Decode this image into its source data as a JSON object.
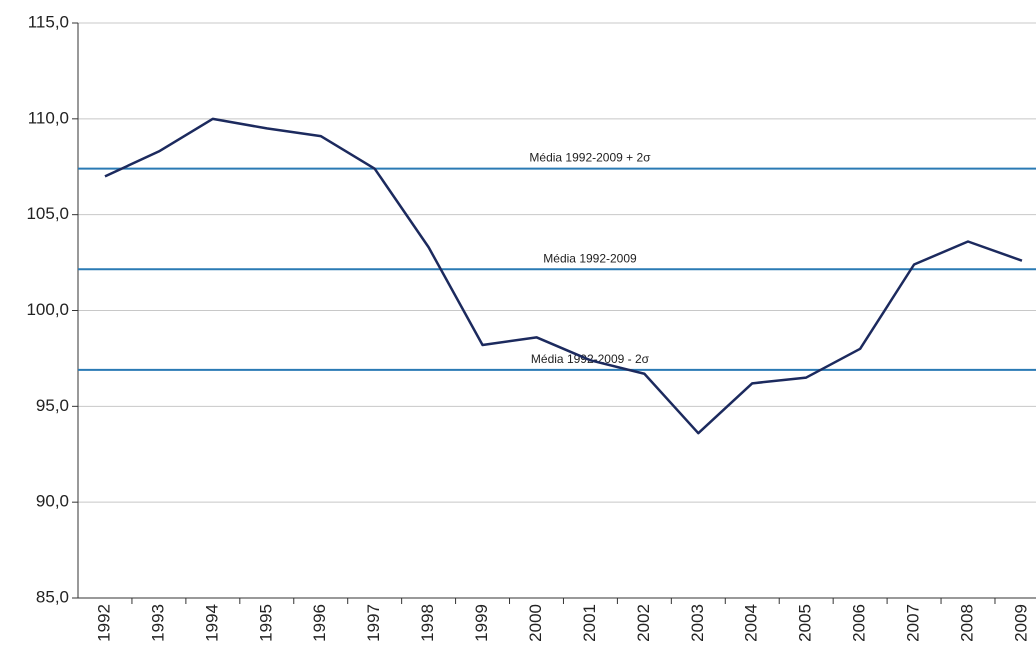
{
  "chart_data": {
    "type": "line",
    "categories": [
      "1992",
      "1993",
      "1994",
      "1995",
      "1996",
      "1997",
      "1998",
      "1999",
      "2000",
      "2001",
      "2002",
      "2003",
      "2004",
      "2005",
      "2006",
      "2007",
      "2008",
      "2009"
    ],
    "values": [
      107.0,
      108.3,
      110.0,
      109.5,
      109.1,
      107.4,
      103.3,
      98.2,
      98.6,
      97.4,
      96.7,
      93.6,
      96.2,
      96.5,
      98.0,
      102.4,
      103.6,
      102.6
    ],
    "color": "#1c2a5e",
    "reference_lines": [
      {
        "label": "Média 1992-2009 + 2σ",
        "value": 107.4
      },
      {
        "label": "Média 1992-2009",
        "value": 102.15
      },
      {
        "label": "Média 1992-2009 - 2σ",
        "value": 96.9
      }
    ],
    "reference_color": "#2a7ab4",
    "ylim": [
      85,
      115
    ],
    "yticks": [
      {
        "value": 85,
        "label": "85,0"
      },
      {
        "value": 90,
        "label": "90,0"
      },
      {
        "value": 95,
        "label": "95,0"
      },
      {
        "value": 100,
        "label": "100,0"
      },
      {
        "value": 105,
        "label": "105,0"
      },
      {
        "value": 110,
        "label": "110,0"
      },
      {
        "value": 115,
        "label": "115,0"
      }
    ],
    "grid": true
  }
}
